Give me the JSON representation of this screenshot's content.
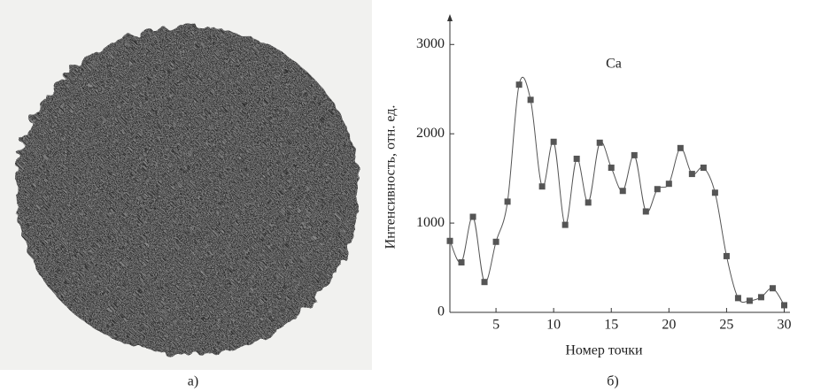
{
  "panel_labels": [
    "а)",
    "б)"
  ],
  "chart_data": {
    "type": "line",
    "annotation": "Ca",
    "x_label": "Номер точки",
    "y_label": "Интенсивность, отн. ед.",
    "x": [
      1,
      2,
      3,
      4,
      5,
      6,
      7,
      8,
      9,
      10,
      11,
      12,
      13,
      14,
      15,
      16,
      17,
      18,
      19,
      20,
      21,
      22,
      23,
      24,
      25,
      26,
      27,
      28,
      29,
      30
    ],
    "series": [
      {
        "name": "Ca",
        "color": "#555555",
        "values": [
          800,
          560,
          1070,
          340,
          790,
          1240,
          2550,
          2380,
          1410,
          1910,
          980,
          1720,
          1230,
          1900,
          1620,
          1360,
          1760,
          1130,
          1380,
          1440,
          1840,
          1550,
          1620,
          1340,
          630,
          160,
          130,
          170,
          270,
          80
        ]
      }
    ],
    "xlim": [
      1,
      30.5
    ],
    "xticks": [
      5,
      10,
      15,
      20,
      25,
      30
    ],
    "ylim": [
      0,
      3300
    ],
    "yticks": [
      0,
      1000,
      2000,
      3000
    ],
    "grid": false
  }
}
